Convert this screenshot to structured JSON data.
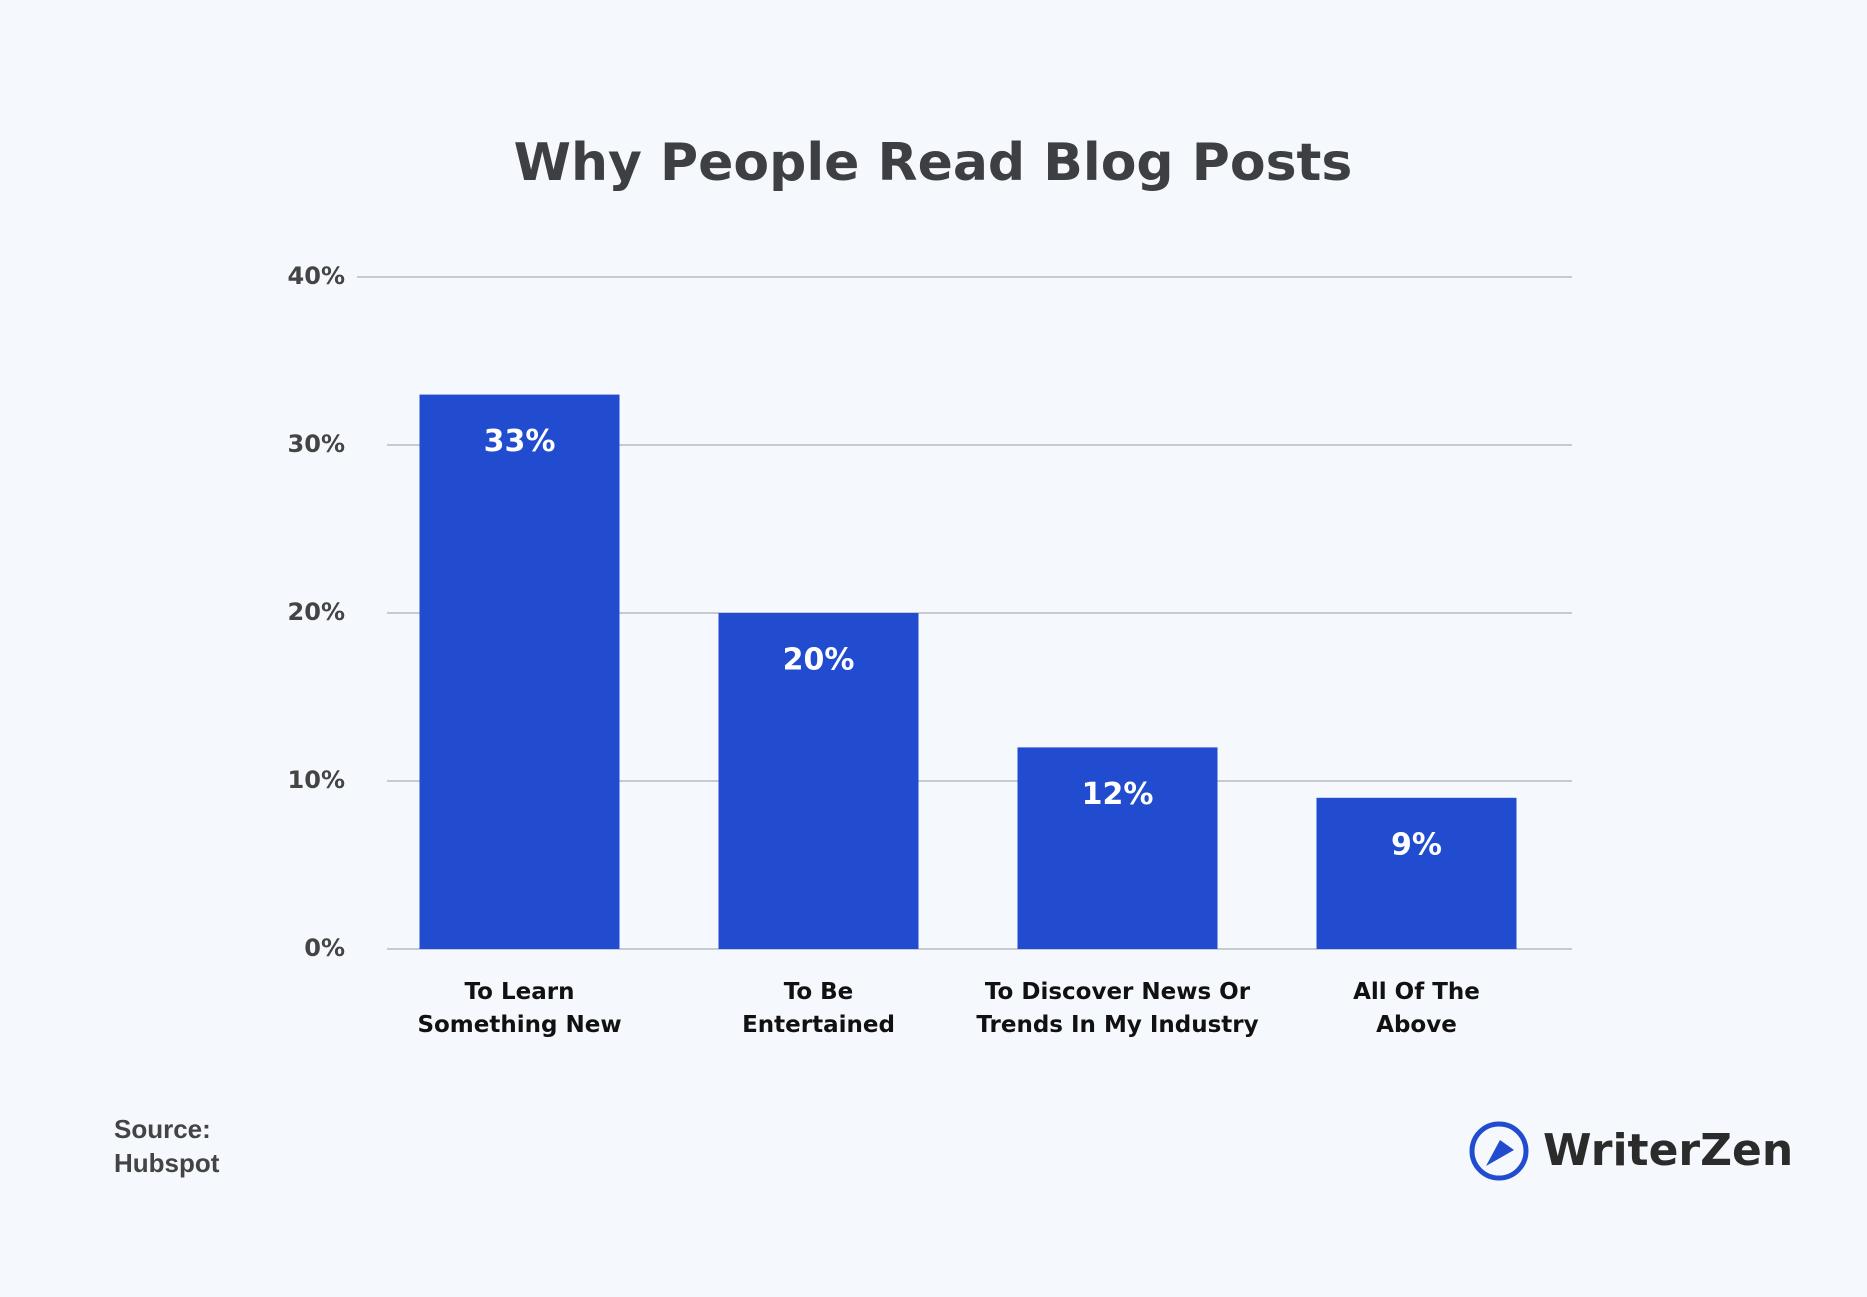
{
  "chart_data": {
    "type": "bar",
    "title": "Why People Read Blog Posts",
    "categories": [
      "To Learn\nSomething New",
      "To Be\nEntertained",
      "To Discover News Or\nTrends In My Industry",
      "All Of The\nAbove"
    ],
    "values": [
      33,
      20,
      12,
      9
    ],
    "value_labels": [
      "33%",
      "20%",
      "12%",
      "9%"
    ],
    "color": "#214ccf",
    "ylim": [
      0,
      40
    ],
    "yticks": [
      {
        "value": 0,
        "label": "0%"
      },
      {
        "value": 10,
        "label": "10%"
      },
      {
        "value": 20,
        "label": "20%"
      },
      {
        "value": 30,
        "label": "30%"
      },
      {
        "value": 40,
        "label": "40%"
      }
    ],
    "grid": true
  },
  "source": "Source:\nHubspot",
  "brand": "WriterZen"
}
